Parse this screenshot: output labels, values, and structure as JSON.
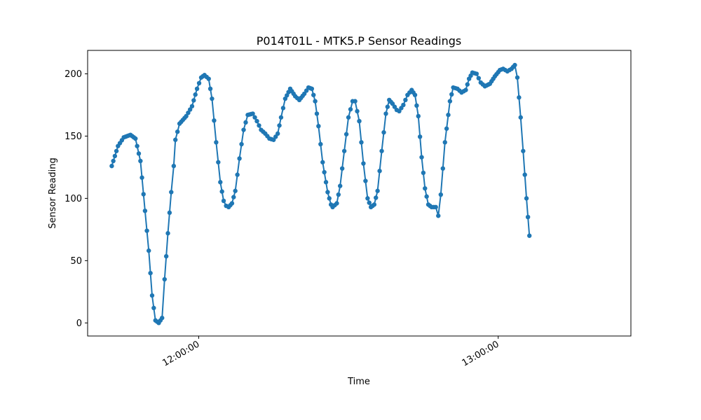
{
  "chart_data": {
    "type": "line",
    "title": "P014T01L - MTK5.P Sensor Readings",
    "xlabel": "Time",
    "ylabel": "Sensor Reading",
    "x_ticks": [
      {
        "t": 0,
        "label": "12:00:00"
      },
      {
        "t": 3600,
        "label": "13:00:00"
      }
    ],
    "y_ticks": [
      0,
      50,
      100,
      150,
      200
    ],
    "xlim": [
      -1335,
      5195
    ],
    "ylim": [
      -10.5,
      218.8
    ],
    "grid": false,
    "series_color": "#1f77b4",
    "x_units": "seconds relative to 12:00:00",
    "key_points": [
      [
        -1045,
        126
      ],
      [
        -970,
        142
      ],
      [
        -900,
        149
      ],
      [
        -820,
        151
      ],
      [
        -760,
        148
      ],
      [
        -700,
        130
      ],
      [
        -645,
        90
      ],
      [
        -600,
        58
      ],
      [
        -560,
        22
      ],
      [
        -520,
        2
      ],
      [
        -480,
        0
      ],
      [
        -440,
        4
      ],
      [
        -410,
        35
      ],
      [
        -370,
        72
      ],
      [
        -330,
        105
      ],
      [
        -300,
        126
      ],
      [
        -280,
        147
      ],
      [
        -230,
        160
      ],
      [
        -150,
        166
      ],
      [
        -80,
        174
      ],
      [
        -20,
        188
      ],
      [
        30,
        197
      ],
      [
        70,
        199
      ],
      [
        120,
        196
      ],
      [
        160,
        180
      ],
      [
        210,
        145
      ],
      [
        260,
        113
      ],
      [
        300,
        98
      ],
      [
        330,
        94
      ],
      [
        360,
        93
      ],
      [
        400,
        96
      ],
      [
        440,
        106
      ],
      [
        490,
        132
      ],
      [
        540,
        155
      ],
      [
        590,
        167
      ],
      [
        650,
        168
      ],
      [
        700,
        162
      ],
      [
        750,
        155
      ],
      [
        800,
        152
      ],
      [
        850,
        148
      ],
      [
        900,
        147
      ],
      [
        950,
        152
      ],
      [
        990,
        165
      ],
      [
        1040,
        180
      ],
      [
        1100,
        188
      ],
      [
        1160,
        182
      ],
      [
        1210,
        179
      ],
      [
        1270,
        184
      ],
      [
        1320,
        189
      ],
      [
        1360,
        188
      ],
      [
        1400,
        178
      ],
      [
        1440,
        158
      ],
      [
        1490,
        129
      ],
      [
        1550,
        105
      ],
      [
        1590,
        95
      ],
      [
        1610,
        93
      ],
      [
        1660,
        96
      ],
      [
        1700,
        110
      ],
      [
        1750,
        138
      ],
      [
        1800,
        165
      ],
      [
        1850,
        178
      ],
      [
        1880,
        178
      ],
      [
        1930,
        162
      ],
      [
        1980,
        128
      ],
      [
        2030,
        100
      ],
      [
        2070,
        93
      ],
      [
        2110,
        95
      ],
      [
        2150,
        106
      ],
      [
        2200,
        138
      ],
      [
        2250,
        168
      ],
      [
        2290,
        179
      ],
      [
        2330,
        176
      ],
      [
        2380,
        171
      ],
      [
        2410,
        170
      ],
      [
        2460,
        175
      ],
      [
        2510,
        183
      ],
      [
        2560,
        187
      ],
      [
        2600,
        183
      ],
      [
        2640,
        166
      ],
      [
        2680,
        133
      ],
      [
        2720,
        108
      ],
      [
        2760,
        95
      ],
      [
        2800,
        93
      ],
      [
        2850,
        93
      ],
      [
        2880,
        86
      ],
      [
        2910,
        103
      ],
      [
        2960,
        145
      ],
      [
        3020,
        178
      ],
      [
        3060,
        189
      ],
      [
        3110,
        188
      ],
      [
        3160,
        185
      ],
      [
        3210,
        187
      ],
      [
        3250,
        196
      ],
      [
        3290,
        201
      ],
      [
        3340,
        200
      ],
      [
        3390,
        193
      ],
      [
        3440,
        190
      ],
      [
        3500,
        192
      ],
      [
        3560,
        198
      ],
      [
        3620,
        203
      ],
      [
        3660,
        204
      ],
      [
        3710,
        202
      ],
      [
        3760,
        204
      ],
      [
        3800,
        207
      ],
      [
        3830,
        197
      ],
      [
        3870,
        165
      ],
      [
        3900,
        138
      ],
      [
        3940,
        100
      ],
      [
        3975,
        70
      ]
    ]
  }
}
